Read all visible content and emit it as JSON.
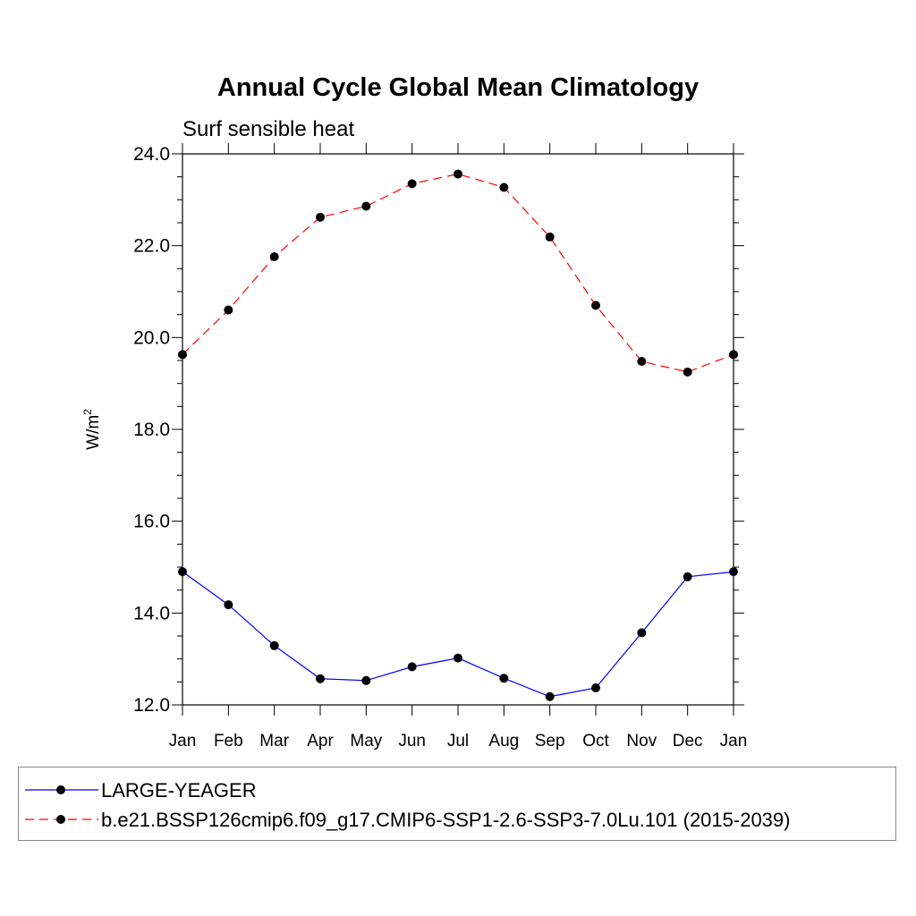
{
  "chart_data": {
    "type": "line",
    "title": "Annual Cycle Global Mean Climatology",
    "subtitle": "Surf sensible heat",
    "ylabel": "W/m",
    "ylabel_sup": "2",
    "xlabel": "",
    "ylim": [
      12.0,
      24.0
    ],
    "yticks": [
      "12.0",
      "14.0",
      "16.0",
      "18.0",
      "20.0",
      "22.0",
      "24.0"
    ],
    "categories": [
      "Jan",
      "Feb",
      "Mar",
      "Apr",
      "May",
      "Jun",
      "Jul",
      "Aug",
      "Sep",
      "Oct",
      "Nov",
      "Dec",
      "Jan"
    ],
    "grid": false,
    "legend_position": "bottom",
    "series": [
      {
        "name": "LARGE-YEAGER",
        "color": "#0000ff",
        "dash": "solid",
        "marker": "filled-circle",
        "values": [
          14.9,
          14.18,
          13.29,
          12.57,
          12.53,
          12.83,
          13.02,
          12.58,
          12.18,
          12.37,
          13.57,
          14.79,
          14.9
        ]
      },
      {
        "name": "b.e21.BSSP126cmip6.f09_g17.CMIP6-SSP1-2.6-SSP3-7.0Lu.101 (2015-2039)",
        "color": "#ff0000",
        "dash": "dashed",
        "marker": "filled-circle",
        "values": [
          19.63,
          20.6,
          21.76,
          22.62,
          22.86,
          23.35,
          23.56,
          23.27,
          22.19,
          20.7,
          19.48,
          19.25,
          19.63
        ]
      }
    ]
  }
}
